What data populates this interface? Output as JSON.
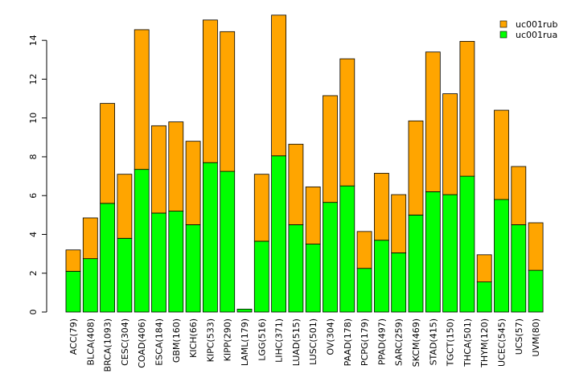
{
  "chart_data": {
    "type": "bar",
    "stacked": true,
    "title": "",
    "xlabel": "",
    "ylabel": "",
    "ylim": [
      0,
      15.5
    ],
    "yticks": [
      0,
      2,
      4,
      6,
      8,
      10,
      12,
      14
    ],
    "legend_position": "top-right",
    "categories": [
      "ACC(79)",
      "BLCA(408)",
      "BRCA(1093)",
      "CESC(304)",
      "COAD(406)",
      "ESCA(184)",
      "GBM(160)",
      "KICH(66)",
      "KIPC(533)",
      "KIPP(290)",
      "LAML(179)",
      "LGG(516)",
      "LIHC(371)",
      "LUAD(515)",
      "LUSC(501)",
      "OV(304)",
      "PAAD(178)",
      "PCPG(179)",
      "PPAD(497)",
      "SARC(259)",
      "SKCM(469)",
      "STAD(415)",
      "TGCT(150)",
      "THCA(501)",
      "THYM(120)",
      "UCEC(545)",
      "UCS(57)",
      "UVM(80)"
    ],
    "series": [
      {
        "name": "uc001rua",
        "color": "#00ff00",
        "values": [
          2.1,
          2.75,
          5.6,
          3.8,
          7.35,
          5.1,
          5.2,
          4.5,
          7.7,
          7.25,
          0.15,
          3.65,
          8.05,
          4.5,
          3.5,
          5.65,
          6.5,
          2.25,
          3.7,
          3.05,
          5.0,
          6.2,
          6.05,
          7.0,
          1.55,
          5.8,
          4.5,
          2.15
        ]
      },
      {
        "name": "uc001rub",
        "color": "#ffa500",
        "values": [
          1.1,
          2.1,
          5.15,
          3.3,
          7.2,
          4.5,
          4.6,
          4.3,
          7.35,
          7.2,
          0.0,
          3.45,
          7.25,
          4.15,
          2.95,
          5.5,
          6.55,
          1.9,
          3.45,
          3.0,
          4.85,
          7.2,
          5.2,
          6.95,
          1.4,
          4.6,
          3.0,
          2.45
        ]
      }
    ]
  }
}
